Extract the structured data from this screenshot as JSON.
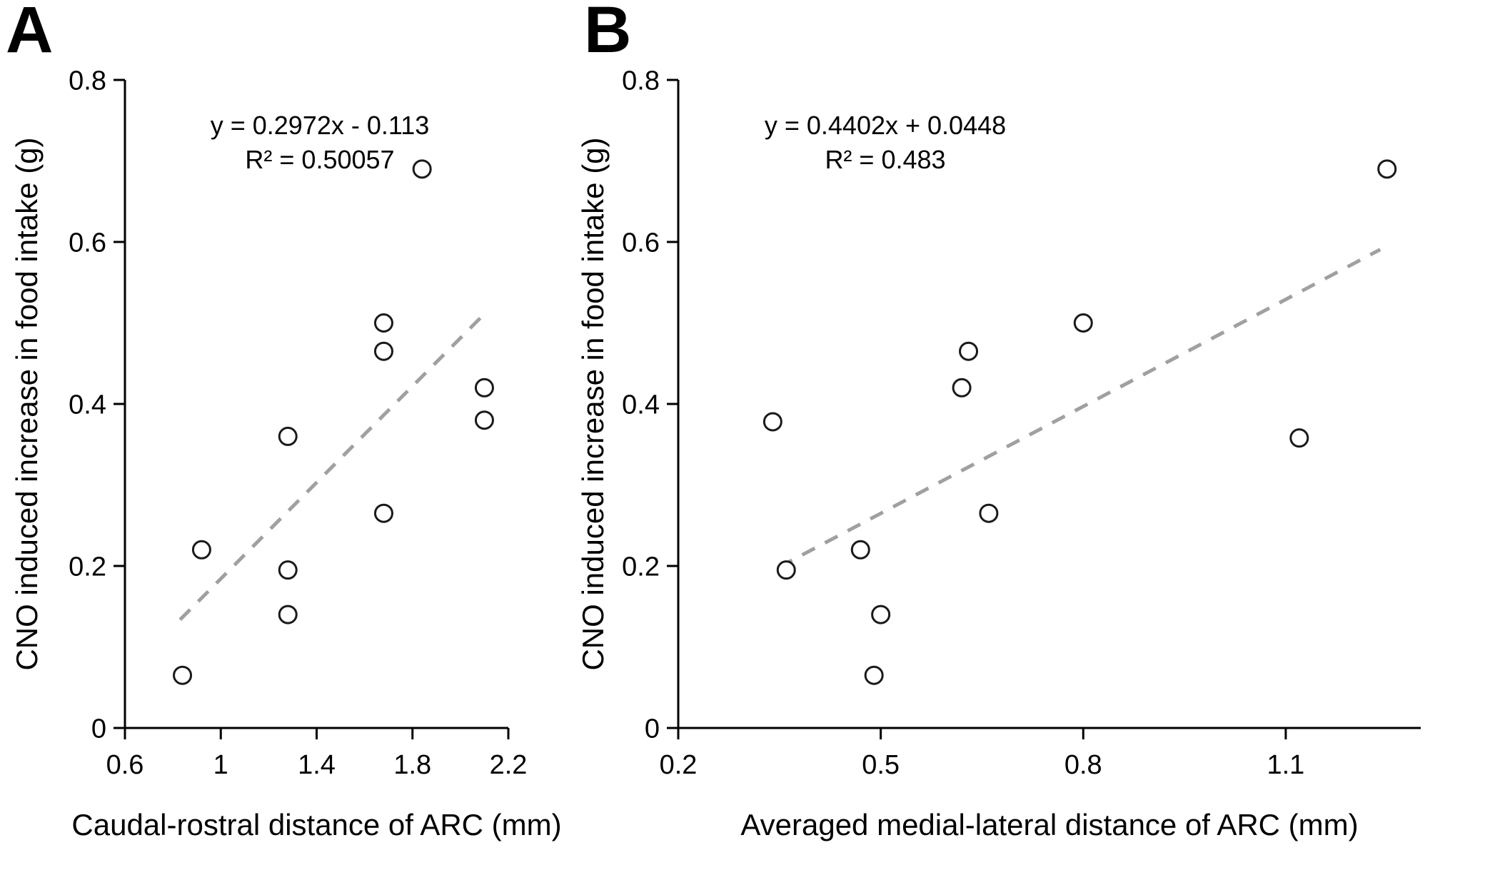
{
  "colors": {
    "background": "#ffffff",
    "axis": "#000000",
    "text": "#000000",
    "point_stroke": "#1a1a1a",
    "point_fill": "#ffffff",
    "trend": "#a0a0a0"
  },
  "chart_data": [
    {
      "panel_label": "A",
      "type": "scatter",
      "equation_line1": "y = 0.2972x - 0.113",
      "equation_line2": "R² = 0.50057",
      "xlabel": "Caudal-rostral distance of ARC (mm)",
      "ylabel": "CNO induced increase in food intake (g)",
      "xlim": [
        0.6,
        2.2
      ],
      "ylim": [
        0,
        0.8
      ],
      "xtick_labels": [
        "0.6",
        "1",
        "1.4",
        "1.8",
        "2.2"
      ],
      "ytick_labels": [
        "0",
        "0.2",
        "0.4",
        "0.6",
        "0.8"
      ],
      "grid": false,
      "legend": "none",
      "points": [
        [
          0.84,
          0.065
        ],
        [
          0.92,
          0.22
        ],
        [
          1.28,
          0.14
        ],
        [
          1.28,
          0.195
        ],
        [
          1.28,
          0.36
        ],
        [
          1.68,
          0.265
        ],
        [
          1.68,
          0.465
        ],
        [
          1.68,
          0.5
        ],
        [
          1.84,
          0.69
        ],
        [
          2.1,
          0.38
        ],
        [
          2.1,
          0.42
        ]
      ],
      "trend": {
        "slope": 0.2972,
        "intercept": -0.113,
        "x_start": 0.83,
        "x_end": 2.1,
        "style": "dashed"
      }
    },
    {
      "panel_label": "B",
      "type": "scatter",
      "equation_line1": "y = 0.4402x + 0.0448",
      "equation_line2": "R² = 0.483",
      "xlabel": "Averaged medial-lateral distance of ARC (mm)",
      "ylabel": "CNO induced increase in food intake (g)",
      "xlim": [
        0.2,
        1.3
      ],
      "ylim": [
        0,
        0.8
      ],
      "xtick_labels": [
        "0.2",
        "0.5",
        "0.8",
        "1.1"
      ],
      "ytick_labels": [
        "0",
        "0.2",
        "0.4",
        "0.6",
        "0.8"
      ],
      "grid": false,
      "legend": "none",
      "points": [
        [
          0.34,
          0.378
        ],
        [
          0.36,
          0.195
        ],
        [
          0.47,
          0.22
        ],
        [
          0.49,
          0.065
        ],
        [
          0.5,
          0.14
        ],
        [
          0.62,
          0.42
        ],
        [
          0.63,
          0.465
        ],
        [
          0.66,
          0.265
        ],
        [
          0.8,
          0.5
        ],
        [
          1.12,
          0.358
        ],
        [
          1.25,
          0.69
        ]
      ],
      "trend": {
        "slope": 0.4402,
        "intercept": 0.0448,
        "x_start": 0.35,
        "x_end": 1.24,
        "style": "dashed"
      }
    }
  ]
}
